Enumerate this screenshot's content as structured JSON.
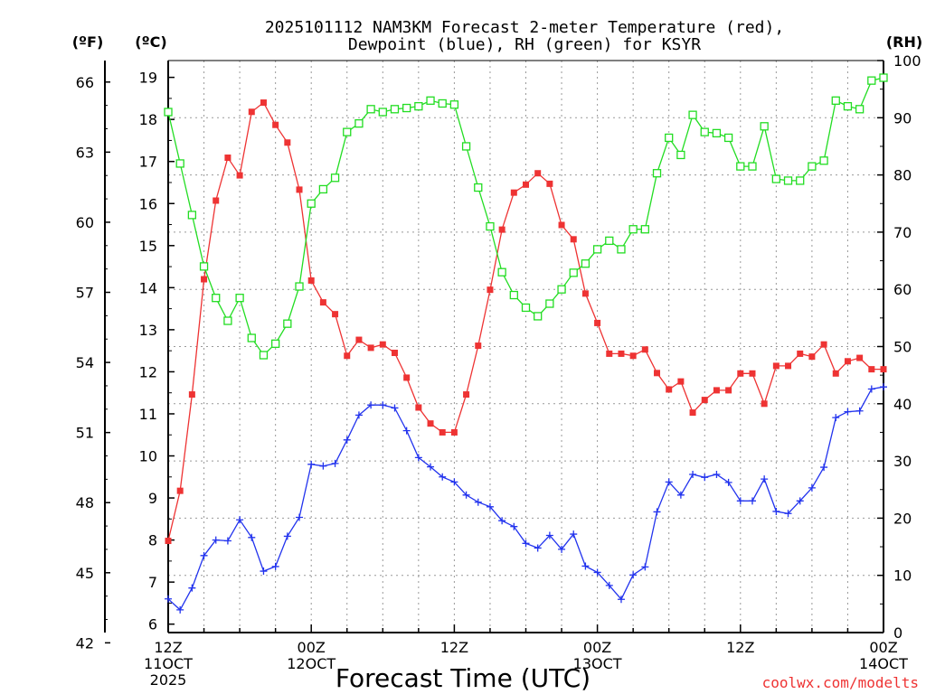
{
  "chart_data": {
    "type": "line",
    "title_line1": "2025101112 NAM3KM Forecast 2-meter Temperature (red),",
    "title_line2": "Dewpoint (blue), RH (green) for KSYR",
    "xlabel": "Forecast Time (UTC)",
    "credit": "coolwx.com/modelts",
    "unit_f": "(ºF)",
    "unit_c": "(ºC)",
    "unit_rh": "(RH)",
    "x_range_hours": [
      0,
      60
    ],
    "c_range": [
      5.8,
      19.4
    ],
    "rh_range": [
      0,
      100
    ],
    "x_ticks": [
      {
        "hour": 0,
        "lines": [
          "12Z",
          "11OCT",
          "2025"
        ]
      },
      {
        "hour": 12,
        "lines": [
          "00Z",
          "12OCT"
        ]
      },
      {
        "hour": 24,
        "lines": [
          "12Z"
        ]
      },
      {
        "hour": 36,
        "lines": [
          "00Z",
          "13OCT"
        ]
      },
      {
        "hour": 48,
        "lines": [
          "12Z"
        ]
      },
      {
        "hour": 60,
        "lines": [
          "00Z",
          "14OCT"
        ]
      }
    ],
    "c_ticks": [
      6,
      7,
      8,
      9,
      10,
      11,
      12,
      13,
      14,
      15,
      16,
      17,
      18,
      19
    ],
    "f_ticks": [
      42,
      45,
      48,
      51,
      54,
      57,
      60,
      63,
      66
    ],
    "rh_ticks": [
      0,
      10,
      20,
      30,
      40,
      50,
      60,
      70,
      80,
      90,
      100
    ],
    "series": [
      {
        "name": "Temperature",
        "units": "C",
        "color": "#ee3333",
        "marker": "filled-square",
        "values": [
          7.98,
          9.17,
          11.46,
          14.2,
          16.07,
          17.09,
          16.67,
          18.18,
          18.4,
          17.87,
          17.45,
          16.33,
          14.17,
          13.65,
          13.37,
          12.38,
          12.76,
          12.57,
          12.65,
          12.45,
          11.86,
          11.15,
          10.77,
          10.56,
          10.56,
          11.46,
          12.62,
          13.95,
          15.38,
          16.26,
          16.45,
          16.72,
          16.47,
          15.49,
          15.15,
          13.86,
          13.16,
          12.43,
          12.43,
          12.38,
          12.53,
          11.97,
          11.58,
          11.77,
          11.03,
          11.33,
          11.56,
          11.56,
          11.96,
          11.96,
          11.24,
          12.14,
          12.14,
          12.43,
          12.36,
          12.65,
          11.96,
          12.25,
          12.33,
          12.06,
          12.06
        ]
      },
      {
        "name": "Dewpoint",
        "units": "C",
        "color": "#2233ee",
        "marker": "plus",
        "values": [
          6.6,
          6.34,
          6.86,
          7.63,
          8.0,
          7.98,
          8.48,
          8.06,
          7.26,
          7.37,
          8.09,
          8.54,
          9.8,
          9.76,
          9.82,
          10.38,
          10.97,
          11.21,
          11.21,
          11.14,
          10.6,
          9.96,
          9.74,
          9.5,
          9.38,
          9.07,
          8.9,
          8.79,
          8.46,
          8.32,
          7.92,
          7.81,
          8.11,
          7.78,
          8.14,
          7.38,
          7.23,
          6.92,
          6.59,
          7.17,
          7.36,
          8.67,
          9.38,
          9.07,
          9.56,
          9.49,
          9.56,
          9.37,
          8.93,
          8.93,
          9.45,
          8.68,
          8.63,
          8.93,
          9.24,
          9.73,
          10.91,
          11.05,
          11.07,
          11.59,
          11.64
        ]
      },
      {
        "name": "RH",
        "units": "%",
        "color": "#22dd22",
        "marker": "open-square",
        "values": [
          91,
          82,
          73,
          64,
          58.5,
          54.5,
          58.5,
          51.5,
          48.5,
          50.5,
          54,
          60.5,
          75,
          77.5,
          79.5,
          87.5,
          89,
          91.5,
          91,
          91.5,
          91.7,
          92,
          93,
          92.5,
          92.3,
          85,
          77.8,
          71,
          63,
          59,
          56.8,
          55.3,
          57.5,
          60,
          62.9,
          64.5,
          67,
          68.5,
          67,
          70.5,
          70.5,
          80.3,
          86.5,
          83.5,
          90.5,
          87.5,
          87.3,
          86.5,
          81.5,
          81.5,
          88.5,
          79.3,
          79,
          79,
          81.5,
          82.5,
          93,
          92,
          91.5,
          96.5,
          97
        ]
      }
    ]
  }
}
